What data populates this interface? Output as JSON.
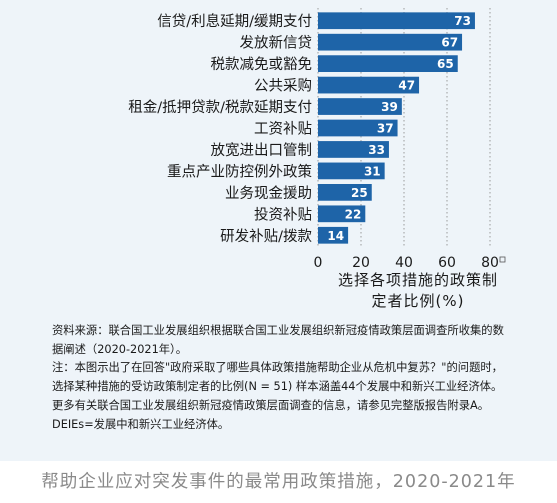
{
  "chart_data": {
    "type": "bar",
    "orientation": "horizontal",
    "categories": [
      "信贷/利息延期/缓期支付",
      "发放新信贷",
      "税款减免或豁免",
      "公共采购",
      "租金/抵押贷款/税款延期支付",
      "工资补贴",
      "放宽进出口管制",
      "重点产业防控例外政策",
      "业务现金援助",
      "投资补贴",
      "研发补贴/拨款"
    ],
    "values": [
      73,
      67,
      65,
      47,
      39,
      37,
      33,
      31,
      25,
      22,
      14
    ],
    "x_ticks": [
      "0",
      "20",
      "40",
      "60",
      "80"
    ],
    "xlim": [
      0,
      80
    ],
    "xlabel": "选择各项措施的政策制定者比例(%)",
    "grid": true,
    "bar_color": "#1e64a8",
    "grid_color": "#9a9a9a"
  },
  "source_note": "资料来源：联合国工业发展组织根据联合国工业发展组织新冠疫情政策层面调查所收集的数据阐述（2020-2021年）。\n注：本图示出了在回答\"政府采取了哪些具体政策措施帮助企业从危机中复苏？\"的问题时，选择某种措施的受访政策制定者的比例(N = 51) 样本涵盖44个发展中和新兴工业经济体。更多有关联合国工业发展组织新冠疫情政策层面调查的信息，请参见完整版报告附录A。DEIEs=发展中和新兴工业经济体。",
  "caption": "帮助企业应对突发事件的最常用政策措施，2020-2021年",
  "colors": {
    "panel_bg": "#eef4f9",
    "caption": "#8a8a8a"
  }
}
